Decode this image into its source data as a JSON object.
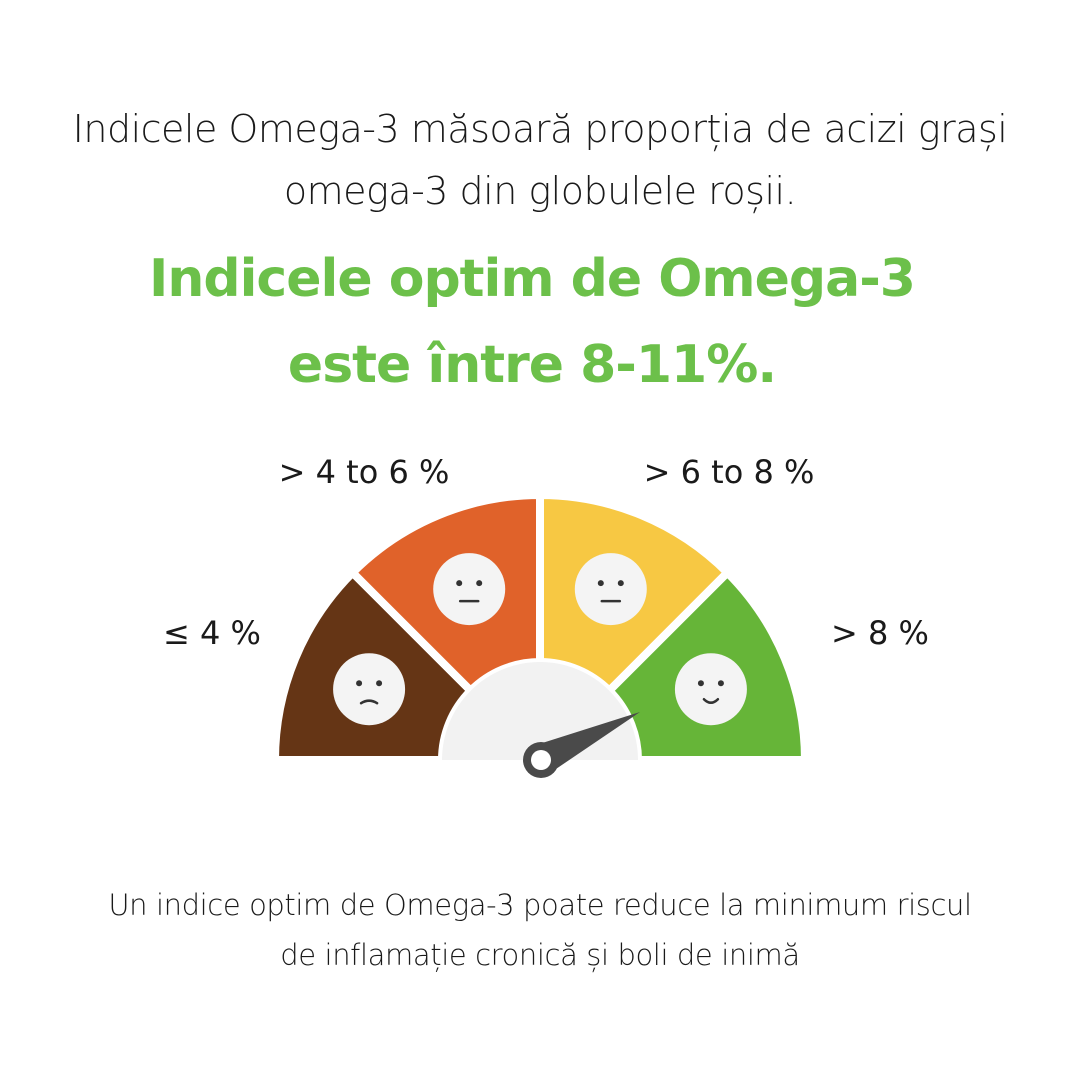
{
  "intro": {
    "line1": "Indicele Omega-3 măsoară proporția de acizi grași",
    "line2": "omega-3 din globulele roșii."
  },
  "headline": {
    "line1": "Indicele optim de Omega-3",
    "line2": "este între 8-11%.",
    "color": "#6cc04a"
  },
  "gauge": {
    "segments": [
      {
        "label": "≤ 4 %",
        "color": "#653515",
        "mood": "sad"
      },
      {
        "label": "> 4 to 6 %",
        "color": "#e0622a",
        "mood": "neutral"
      },
      {
        "label": "> 6 to 8 %",
        "color": "#f7c843",
        "mood": "neutral"
      },
      {
        "label": "> 8 %",
        "color": "#66b538",
        "mood": "happy"
      }
    ],
    "needle_color": "#4a4a4a",
    "needle_points_to": "> 8 %"
  },
  "footnote": {
    "line1": "Un indice optim de Omega-3 poate reduce la minimum riscul",
    "line2": "de inflamație cronică și boli de inimă"
  }
}
